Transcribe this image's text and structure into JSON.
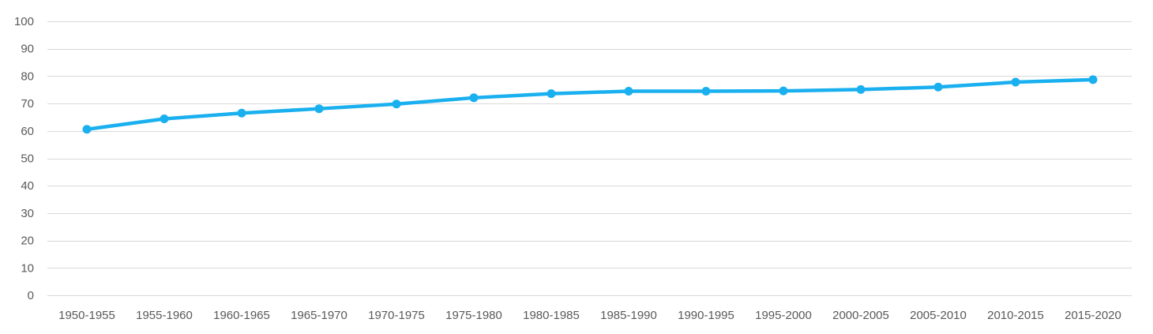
{
  "chart_data": {
    "type": "line",
    "title": "",
    "xlabel": "",
    "ylabel": "",
    "categories": [
      "1950-1955",
      "1955-1960",
      "1960-1965",
      "1965-1970",
      "1970-1975",
      "1975-1980",
      "1980-1985",
      "1985-1990",
      "1990-1995",
      "1995-2000",
      "2000-2005",
      "2005-2010",
      "2010-2015",
      "2015-2020"
    ],
    "series": [
      {
        "values": [
          60.6,
          64.4,
          66.5,
          68.1,
          69.8,
          72.1,
          73.6,
          74.5,
          74.5,
          74.6,
          75.1,
          76.0,
          77.8,
          78.7
        ],
        "color": "#1ab0ef"
      }
    ],
    "ylim": [
      0,
      100
    ],
    "yticks": [
      "0",
      "10",
      "20",
      "30",
      "40",
      "50",
      "60",
      "70",
      "80",
      "90",
      "100"
    ],
    "grid": true,
    "legend": "none"
  }
}
